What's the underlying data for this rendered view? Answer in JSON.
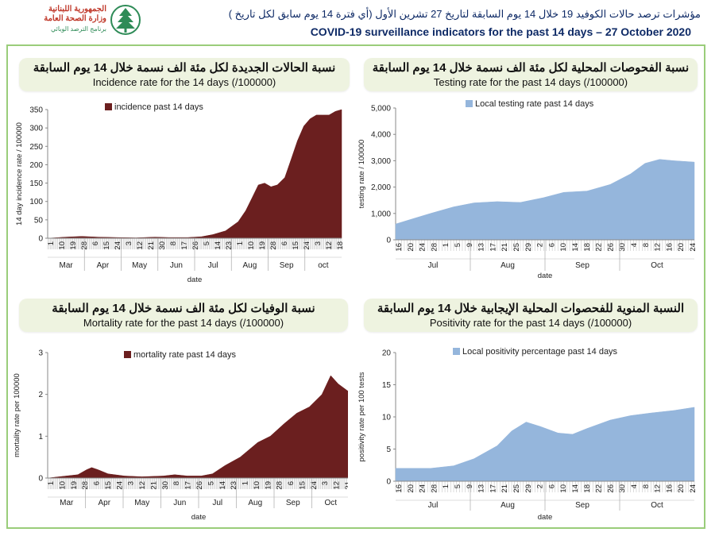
{
  "header": {
    "logo_line1": "الجمهورية اللبنانية",
    "logo_line2": "وزارة الصحة العامة",
    "logo_line3": "برنامج الترصد الوبائي",
    "title_ar": "مؤشرات ترصد حالات الكوفيد 19 خلال  14 يوم السابقة لتاريخ 27 تشرين الأول (أي فترة  14 يوم سابق لكل تاريخ )",
    "title_en": "COVID-19 surveillance indicators for the past 14 days – 27 October 2020"
  },
  "panels": {
    "incidence": {
      "title_ar": "نسبة الحالات الجديدة لكل مئة الف نسمة خلال 14 يوم السابقة",
      "title_en": "Incidence rate for the 14 days  (/100000)"
    },
    "testing": {
      "title_ar": "نسبة الفحوصات المحلية لكل مئة الف نسمة خلال 14 يوم السابقة",
      "title_en": "Testing rate for the past 14 days (/100000)"
    },
    "mortality": {
      "title_ar": "نسبة الوفيات لكل مئة الف نسمة خلال 14 يوم السابقة",
      "title_en": "Mortality rate for the past 14 days (/100000)"
    },
    "positivity": {
      "title_ar": "النسبة المنوية للفحصوات المحلية الإيجابية خلال 14 يوم السابقة",
      "title_en": "Positivity rate for the past 14 days (/100000)"
    }
  },
  "chart_data": [
    {
      "id": "incidence",
      "type": "area",
      "color": "#6b1f1f",
      "legend": "incidence past 14 days",
      "ylabel": "14 day incidence rate / 100000",
      "xlabel": "date",
      "ylim": [
        0,
        350
      ],
      "yticks": [
        "0",
        "50",
        "100",
        "150",
        "200",
        "250",
        "300",
        "350"
      ],
      "xticks": [
        "1",
        "10",
        "19",
        "28",
        "6",
        "15",
        "24",
        "3",
        "12",
        "21",
        "30",
        "8",
        "17",
        "26",
        "5",
        "14",
        "23",
        "1",
        "10",
        "19",
        "28",
        "6",
        "15",
        "24",
        "3",
        "12",
        "18"
      ],
      "months": [
        "Mar",
        "Apr",
        "May",
        "Jun",
        "Jul",
        "Aug",
        "Sep",
        "oct"
      ],
      "x_start": "2020-03-01",
      "x_end": "2020-10-20",
      "points": [
        [
          "2020-03-01",
          0
        ],
        [
          "2020-03-15",
          3
        ],
        [
          "2020-03-28",
          5
        ],
        [
          "2020-04-10",
          3
        ],
        [
          "2020-04-25",
          2
        ],
        [
          "2020-05-10",
          1
        ],
        [
          "2020-05-25",
          3
        ],
        [
          "2020-06-05",
          2
        ],
        [
          "2020-06-20",
          2
        ],
        [
          "2020-07-01",
          4
        ],
        [
          "2020-07-10",
          10
        ],
        [
          "2020-07-20",
          20
        ],
        [
          "2020-07-30",
          45
        ],
        [
          "2020-08-05",
          75
        ],
        [
          "2020-08-10",
          110
        ],
        [
          "2020-08-15",
          145
        ],
        [
          "2020-08-20",
          150
        ],
        [
          "2020-08-25",
          140
        ],
        [
          "2020-08-30",
          145
        ],
        [
          "2020-09-05",
          165
        ],
        [
          "2020-09-10",
          215
        ],
        [
          "2020-09-15",
          265
        ],
        [
          "2020-09-20",
          305
        ],
        [
          "2020-09-25",
          325
        ],
        [
          "2020-09-30",
          335
        ],
        [
          "2020-10-05",
          335
        ],
        [
          "2020-10-10",
          335
        ],
        [
          "2020-10-15",
          345
        ],
        [
          "2020-10-20",
          350
        ]
      ]
    },
    {
      "id": "testing",
      "type": "area",
      "color": "#95b6dc",
      "legend": "Local testing rate past 14 days",
      "ylabel": "testing rate / 100000",
      "xlabel": "date",
      "ylim": [
        0,
        5000
      ],
      "yticks": [
        "0",
        "1,000",
        "2,000",
        "3,000",
        "4,000",
        "5,000"
      ],
      "xticks": [
        "16",
        "20",
        "24",
        "28",
        "1",
        "5",
        "9",
        "13",
        "17",
        "21",
        "25",
        "29",
        "2",
        "6",
        "10",
        "14",
        "18",
        "22",
        "26",
        "30",
        "4",
        "8",
        "12",
        "16",
        "20",
        "24"
      ],
      "months": [
        "Jul",
        "Aug",
        "Sep",
        "Oct"
      ],
      "x_start": "2020-07-16",
      "x_end": "2020-10-27",
      "points": [
        [
          "2020-07-16",
          600
        ],
        [
          "2020-07-22",
          800
        ],
        [
          "2020-07-28",
          1000
        ],
        [
          "2020-08-05",
          1250
        ],
        [
          "2020-08-12",
          1400
        ],
        [
          "2020-08-20",
          1450
        ],
        [
          "2020-08-28",
          1420
        ],
        [
          "2020-09-05",
          1600
        ],
        [
          "2020-09-12",
          1800
        ],
        [
          "2020-09-20",
          1850
        ],
        [
          "2020-09-28",
          2100
        ],
        [
          "2020-10-05",
          2500
        ],
        [
          "2020-10-10",
          2900
        ],
        [
          "2020-10-15",
          3050
        ],
        [
          "2020-10-20",
          3000
        ],
        [
          "2020-10-27",
          2950
        ]
      ]
    },
    {
      "id": "mortality",
      "type": "area",
      "color": "#6b1f1f",
      "legend": "mortality rate past 14 days",
      "ylabel": "mortality rate per 100000",
      "xlabel": "date",
      "ylim": [
        0,
        3
      ],
      "yticks": [
        "0",
        "1",
        "2",
        "3"
      ],
      "xticks": [
        "1",
        "10",
        "19",
        "28",
        "6",
        "15",
        "24",
        "3",
        "12",
        "21",
        "30",
        "8",
        "17",
        "26",
        "5",
        "14",
        "23",
        "1",
        "10",
        "19",
        "28",
        "6",
        "15",
        "24",
        "3",
        "12",
        "21"
      ],
      "months": [
        "Mar",
        "Apr",
        "May",
        "Jun",
        "Jul",
        "Aug",
        "Sep",
        "Oct"
      ],
      "x_start": "2020-03-01",
      "x_end": "2020-10-27",
      "points": [
        [
          "2020-03-01",
          0
        ],
        [
          "2020-03-10",
          0.03
        ],
        [
          "2020-03-25",
          0.08
        ],
        [
          "2020-04-01",
          0.2
        ],
        [
          "2020-04-05",
          0.25
        ],
        [
          "2020-04-10",
          0.2
        ],
        [
          "2020-04-18",
          0.1
        ],
        [
          "2020-05-01",
          0.05
        ],
        [
          "2020-05-15",
          0.03
        ],
        [
          "2020-06-01",
          0.05
        ],
        [
          "2020-06-10",
          0.08
        ],
        [
          "2020-06-20",
          0.05
        ],
        [
          "2020-07-01",
          0.05
        ],
        [
          "2020-07-10",
          0.1
        ],
        [
          "2020-07-20",
          0.3
        ],
        [
          "2020-08-01",
          0.5
        ],
        [
          "2020-08-15",
          0.85
        ],
        [
          "2020-08-25",
          1.0
        ],
        [
          "2020-09-05",
          1.3
        ],
        [
          "2020-09-15",
          1.55
        ],
        [
          "2020-09-25",
          1.7
        ],
        [
          "2020-10-05",
          2.0
        ],
        [
          "2020-10-12",
          2.45
        ],
        [
          "2020-10-18",
          2.25
        ],
        [
          "2020-10-27",
          2.05
        ]
      ]
    },
    {
      "id": "positivity",
      "type": "area",
      "color": "#95b6dc",
      "legend": "Local positivity percentage past 14 days",
      "ylabel": "positivity rate per 100 tests",
      "xlabel": "date",
      "ylim": [
        0,
        20
      ],
      "yticks": [
        "0",
        "5",
        "10",
        "15",
        "20"
      ],
      "xticks": [
        "16",
        "20",
        "24",
        "28",
        "1",
        "5",
        "9",
        "13",
        "17",
        "21",
        "25",
        "29",
        "2",
        "6",
        "10",
        "14",
        "18",
        "22",
        "26",
        "30",
        "4",
        "8",
        "12",
        "16",
        "20",
        "24"
      ],
      "months": [
        "Jul",
        "Aug",
        "Sep",
        "Oct"
      ],
      "x_start": "2020-07-16",
      "x_end": "2020-10-27",
      "points": [
        [
          "2020-07-16",
          2.0
        ],
        [
          "2020-07-28",
          2.0
        ],
        [
          "2020-08-05",
          2.4
        ],
        [
          "2020-08-12",
          3.5
        ],
        [
          "2020-08-20",
          5.5
        ],
        [
          "2020-08-25",
          7.8
        ],
        [
          "2020-08-30",
          9.2
        ],
        [
          "2020-09-04",
          8.5
        ],
        [
          "2020-09-10",
          7.5
        ],
        [
          "2020-09-15",
          7.3
        ],
        [
          "2020-09-20",
          8.2
        ],
        [
          "2020-09-28",
          9.5
        ],
        [
          "2020-10-05",
          10.2
        ],
        [
          "2020-10-12",
          10.6
        ],
        [
          "2020-10-20",
          11.0
        ],
        [
          "2020-10-27",
          11.5
        ]
      ]
    }
  ]
}
